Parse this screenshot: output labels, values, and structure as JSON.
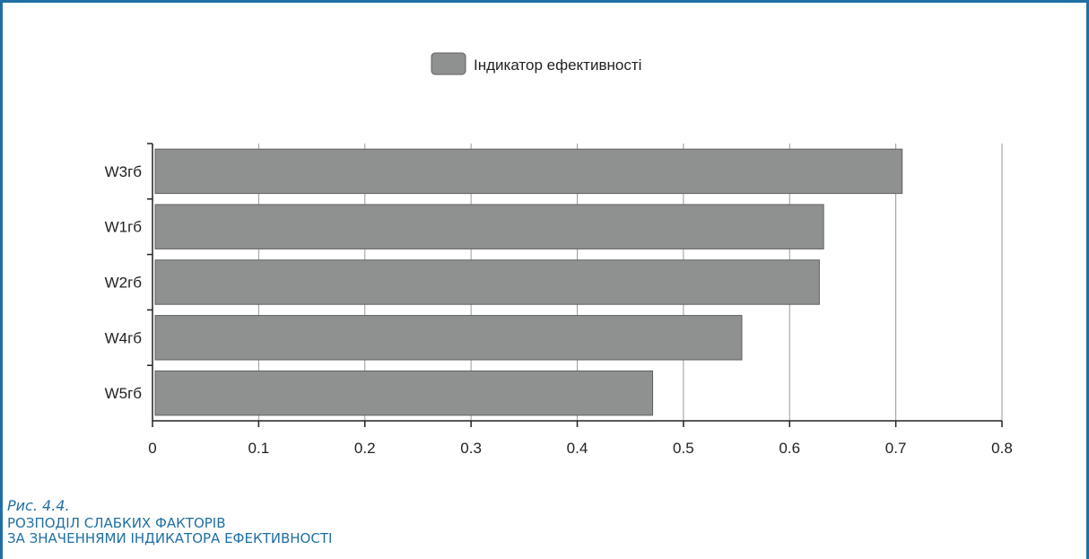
{
  "chart_data": {
    "type": "bar",
    "orientation": "horizontal",
    "categories": [
      "W3гб",
      "W1гб",
      "W2гб",
      "W4гб",
      "W5гб"
    ],
    "series": [
      {
        "name": "Індикатор ефективності",
        "values": [
          0.706,
          0.632,
          0.628,
          0.555,
          0.471
        ]
      }
    ],
    "xticks": [
      "0",
      "0.1",
      "0.2",
      "0.3",
      "0.4",
      "0.5",
      "0.6",
      "0.7",
      "0.8"
    ],
    "xlim": [
      0,
      0.8
    ],
    "grid": "vertical",
    "legend_position": "top-center",
    "bar_color": "#8f9191",
    "bar_edge_color": "#5f6161",
    "title": "",
    "xlabel": "",
    "ylabel": ""
  },
  "caption": {
    "number": "Рис. 4.4.",
    "line1": "РОЗПОДІЛ СЛАБКИХ ФАКТОРІВ",
    "line2": "ЗА ЗНАЧЕННЯМИ ІНДИКАТОРА ЕФЕКТИВНОСТІ"
  },
  "colors": {
    "frame": "#1f6fa4",
    "caption": "#1f6fa4"
  }
}
